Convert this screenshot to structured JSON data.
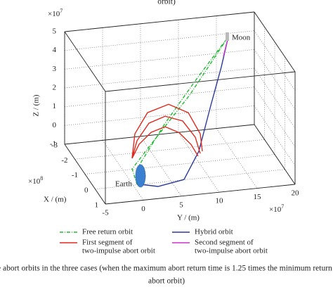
{
  "header_fragment": "orbit)",
  "chart_data": {
    "type": "line3d",
    "xlabel": "X / (m)",
    "ylabel": "Y / (m)",
    "zlabel": "Z / (m)",
    "xmultiplier": {
      "base": "×10",
      "exponent": "8"
    },
    "ymultiplier": {
      "base": "×10",
      "exponent": "7"
    },
    "zmultiplier": {
      "base": "×10",
      "exponent": "7"
    },
    "xlim": [
      -3,
      1
    ],
    "xticks": [
      -3,
      -2,
      -1,
      0,
      1
    ],
    "ylim": [
      -5,
      20
    ],
    "yticks": [
      -5,
      0,
      5,
      10,
      15,
      20
    ],
    "zlim": [
      -1,
      5
    ],
    "zticks": [
      -1,
      0,
      1,
      2,
      3,
      4,
      5
    ],
    "grid": true,
    "annotations": {
      "earth": "Earth",
      "moon": "Moon"
    },
    "series": [
      {
        "name": "Free return orbit",
        "color": "#22bb33",
        "style": "dash-dot",
        "x": [
          0,
          -0.6,
          -1.4,
          -2.3,
          -1.5,
          -0.7,
          -0.1,
          0.3
        ],
        "y": [
          0.51,
          5.02,
          10.26,
          15.63,
          9.47,
          3.3,
          0.0,
          0.11
        ],
        "z": [
          -0.15,
          1.61,
          3.12,
          4.42,
          2.21,
          0.48,
          -0.21,
          -0.72
        ]
      },
      {
        "name": "Hybrid orbit",
        "color": "#2b3a9c",
        "style": "solid",
        "x": [
          0.3,
          0.3,
          0,
          -0.6,
          -1.4,
          -2,
          -2.3
        ],
        "y": [
          0.57,
          2.88,
          6.71,
          9.46,
          12.11,
          14.31,
          15.63
        ],
        "z": [
          -0.74,
          -0.95,
          -0.98,
          -0.07,
          1.62,
          3.1,
          4.42
        ]
      },
      {
        "name": [
          "First segment of",
          "two-impulse abort orbit"
        ],
        "color": "#dd2b1f",
        "style": "solid",
        "x": [
          -0.3,
          -0.3,
          -0.3,
          -0.3,
          -0.3,
          -0.3,
          -0.3,
          null,
          -0.3,
          -0.3,
          -0.3,
          -0.3,
          -0.3,
          -0.3,
          -0.3,
          null,
          -0.3,
          -0.3,
          -0.3,
          -0.3,
          -0.3,
          -0.3,
          -0.3
        ],
        "y": [
          0.26,
          0.63,
          2.3,
          5.08,
          7.67,
          9.25,
          9.52,
          null,
          0.26,
          0.91,
          2.49,
          4.62,
          6.93,
          8.6,
          9.25,
          null,
          0.26,
          1.19,
          2.77,
          4.62,
          6.47,
          8.04,
          8.97
        ],
        "z": [
          0.18,
          1.47,
          2.53,
          2.86,
          2.3,
          1.11,
          0.17,
          null,
          0.18,
          1.09,
          1.96,
          2.24,
          1.89,
          0.95,
          0.06,
          null,
          0.18,
          0.89,
          1.46,
          1.68,
          1.29,
          0.59,
          -0.07
        ]
      },
      {
        "name": [
          "Second segment of",
          "two-impulse abort orbit"
        ],
        "color": "#cc33cc",
        "style": "solid",
        "x": [
          -2.1,
          -2.3
        ],
        "y": [
          14.72,
          15.63
        ],
        "z": [
          3.57,
          4.42
        ]
      }
    ]
  },
  "caption": [
    "e abort orbits in the three cases (when the maximum abort return time is 1.25 times the minimum return",
    "abort orbit)"
  ]
}
